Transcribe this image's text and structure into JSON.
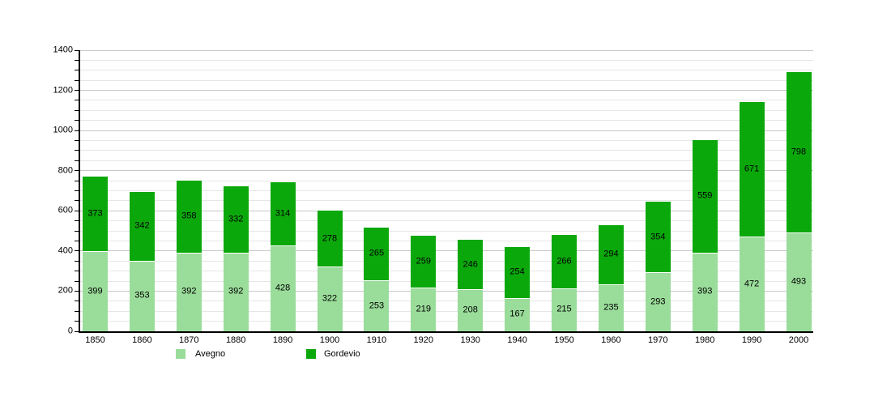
{
  "chart_data": {
    "type": "bar",
    "stacked": true,
    "title": "",
    "xlabel": "",
    "ylabel": "",
    "categories": [
      "1850",
      "1860",
      "1870",
      "1880",
      "1890",
      "1900",
      "1910",
      "1920",
      "1930",
      "1940",
      "1950",
      "1960",
      "1970",
      "1980",
      "1990",
      "2000"
    ],
    "series": [
      {
        "name": "Avegno",
        "color": "#9adc9a",
        "values": [
          399,
          353,
          392,
          392,
          428,
          322,
          253,
          219,
          208,
          167,
          215,
          235,
          293,
          393,
          472,
          493
        ]
      },
      {
        "name": "Gordevio",
        "color": "#0ba80b",
        "values": [
          373,
          342,
          358,
          332,
          314,
          278,
          265,
          259,
          246,
          254,
          266,
          294,
          354,
          559,
          671,
          798
        ]
      }
    ],
    "ylim": [
      0,
      1400
    ],
    "y_major_step": 200,
    "y_minor_step": 50,
    "y_tick_labels": [
      "0",
      "200",
      "400",
      "600",
      "800",
      "1000",
      "1200",
      "1400"
    ],
    "grid": true,
    "legend_position": "bottom"
  },
  "colors": {
    "background": "#ffffff",
    "axis": "#000000",
    "grid_major": "#c8c8c8",
    "grid_minor": "#e6e6e6",
    "text": "#000000",
    "segment_separator": "#ffffff"
  }
}
